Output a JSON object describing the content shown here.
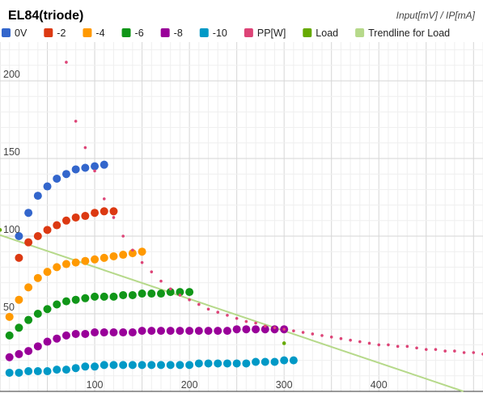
{
  "chart_data": {
    "type": "scatter",
    "title": "EL84(triode)",
    "subtitle": "Input[mV] / IP[mA]",
    "xlabel": "",
    "ylabel": "",
    "xlim": [
      0,
      510
    ],
    "ylim": [
      0,
      225
    ],
    "x_ticks": [
      100,
      200,
      300,
      400
    ],
    "y_ticks": [
      50,
      100,
      150,
      200
    ],
    "grid": true,
    "legend_position": "top",
    "series": [
      {
        "name": "0V",
        "color": "#3366cc",
        "x": [
          20,
          30,
          40,
          50,
          60,
          70,
          80,
          90,
          100,
          110
        ],
        "y": [
          100,
          115,
          126,
          132,
          137,
          140,
          143,
          144,
          145,
          146
        ]
      },
      {
        "name": "-2",
        "color": "#dc3912",
        "x": [
          20,
          30,
          40,
          50,
          60,
          70,
          80,
          90,
          100,
          110,
          120
        ],
        "y": [
          86,
          96,
          100,
          104,
          107,
          110,
          112,
          113,
          115,
          116,
          116
        ]
      },
      {
        "name": "-4",
        "color": "#ff9900",
        "x": [
          10,
          20,
          30,
          40,
          50,
          60,
          70,
          80,
          90,
          100,
          110,
          120,
          130,
          140,
          150
        ],
        "y": [
          48,
          59,
          67,
          73,
          77,
          80,
          82,
          83,
          84,
          85,
          86,
          87,
          88,
          89,
          90
        ]
      },
      {
        "name": "-6",
        "color": "#109618",
        "x": [
          10,
          20,
          30,
          40,
          50,
          60,
          70,
          80,
          90,
          100,
          110,
          120,
          130,
          140,
          150,
          160,
          170,
          180,
          190,
          200
        ],
        "y": [
          36,
          41,
          46,
          50,
          53,
          56,
          58,
          59,
          60,
          61,
          61,
          61,
          62,
          62,
          63,
          63,
          63,
          64,
          64,
          64
        ]
      },
      {
        "name": "-8",
        "color": "#990099",
        "x": [
          10,
          20,
          30,
          40,
          50,
          60,
          70,
          80,
          90,
          100,
          110,
          120,
          130,
          140,
          150,
          160,
          170,
          180,
          190,
          200,
          210,
          220,
          230,
          240,
          250,
          260,
          270,
          280,
          290,
          300
        ],
        "y": [
          22,
          24,
          26,
          29,
          32,
          34,
          36,
          37,
          37,
          38,
          38,
          38,
          38,
          38,
          39,
          39,
          39,
          39,
          39,
          39,
          39,
          39,
          39,
          39,
          40,
          40,
          40,
          40,
          40,
          40
        ]
      },
      {
        "name": "-10",
        "color": "#0099c6",
        "x": [
          10,
          20,
          30,
          40,
          50,
          60,
          70,
          80,
          90,
          100,
          110,
          120,
          130,
          140,
          150,
          160,
          170,
          180,
          190,
          200,
          210,
          220,
          230,
          240,
          250,
          260,
          270,
          280,
          290,
          300,
          310
        ],
        "y": [
          12,
          12,
          13,
          13,
          13,
          14,
          14,
          15,
          16,
          16,
          17,
          17,
          17,
          17,
          17,
          17,
          17,
          17,
          17,
          17,
          18,
          18,
          18,
          18,
          18,
          18,
          19,
          19,
          19,
          20,
          20
        ]
      },
      {
        "name": "PP[W]",
        "color": "#dd4477",
        "x": [
          70,
          80,
          90,
          100,
          110,
          120,
          130,
          140,
          150,
          160,
          170,
          180,
          190,
          200,
          210,
          220,
          230,
          240,
          250,
          260,
          270,
          280,
          290,
          300,
          310,
          320,
          330,
          340,
          350,
          360,
          370,
          380,
          390,
          400,
          410,
          420,
          430,
          440,
          450,
          460,
          470,
          480,
          490,
          500,
          510
        ],
        "y": [
          212,
          174,
          157,
          142,
          124,
          112,
          100,
          91,
          83,
          77,
          71,
          66,
          62,
          59,
          56,
          53,
          51,
          49,
          47,
          45,
          44,
          42,
          41,
          40,
          39,
          38,
          37,
          36,
          35,
          34,
          33,
          32,
          31,
          30,
          30,
          29,
          29,
          28,
          27,
          27,
          26,
          26,
          25,
          25,
          24
        ]
      },
      {
        "name": "Load",
        "color": "#66aa00",
        "x": [
          0,
          300,
          512
        ],
        "y": [
          104,
          31,
          0
        ]
      }
    ],
    "trendline": {
      "name": "Trendline for Load",
      "color": "#b6d98a",
      "series": "Load"
    }
  }
}
